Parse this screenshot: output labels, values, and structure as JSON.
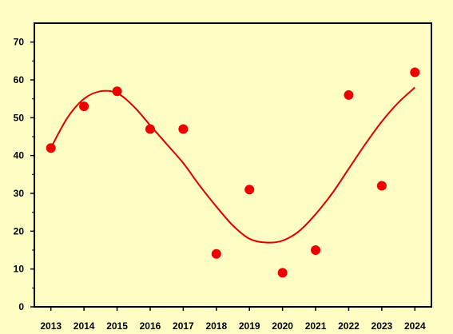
{
  "chart_data": {
    "type": "scatter",
    "x": [
      2013,
      2014,
      2015,
      2016,
      2017,
      2018,
      2019,
      2020,
      2021,
      2022,
      2023,
      2024
    ],
    "y": [
      42,
      53,
      57,
      47,
      47,
      14,
      31,
      9,
      15,
      56,
      32,
      62
    ],
    "xticks": [
      "2013",
      "2014",
      "2015",
      "2016",
      "2017",
      "2018",
      "2019",
      "2020",
      "2021",
      "2022",
      "2023",
      "2024"
    ],
    "yticks": [
      "0",
      "10",
      "20",
      "30",
      "40",
      "50",
      "60",
      "70"
    ],
    "xlim": [
      2012.5,
      2024.5
    ],
    "ylim": [
      0,
      75
    ],
    "trend": {
      "type": "smooth fit curve",
      "x": [
        2013,
        2013.5,
        2014,
        2014.5,
        2015,
        2015.5,
        2016,
        2016.5,
        2017,
        2017.5,
        2018,
        2018.5,
        2019,
        2019.5,
        2020,
        2020.5,
        2021,
        2021.5,
        2022,
        2022.5,
        2023,
        2023.5,
        2024
      ],
      "y": [
        42,
        50,
        55,
        57,
        56.5,
        53,
        48,
        43,
        38,
        32,
        26.5,
        21.5,
        18,
        17,
        17.5,
        20,
        24.5,
        30,
        36.5,
        43,
        49,
        54,
        58
      ]
    },
    "title": "",
    "xlabel": "",
    "ylabel": "",
    "grid": false,
    "colors": {
      "background": "#fdfdc4",
      "plot_area": "#fdfdc4",
      "axis": "#000000",
      "points": "#ee0000",
      "curve": "#dd0000"
    }
  }
}
